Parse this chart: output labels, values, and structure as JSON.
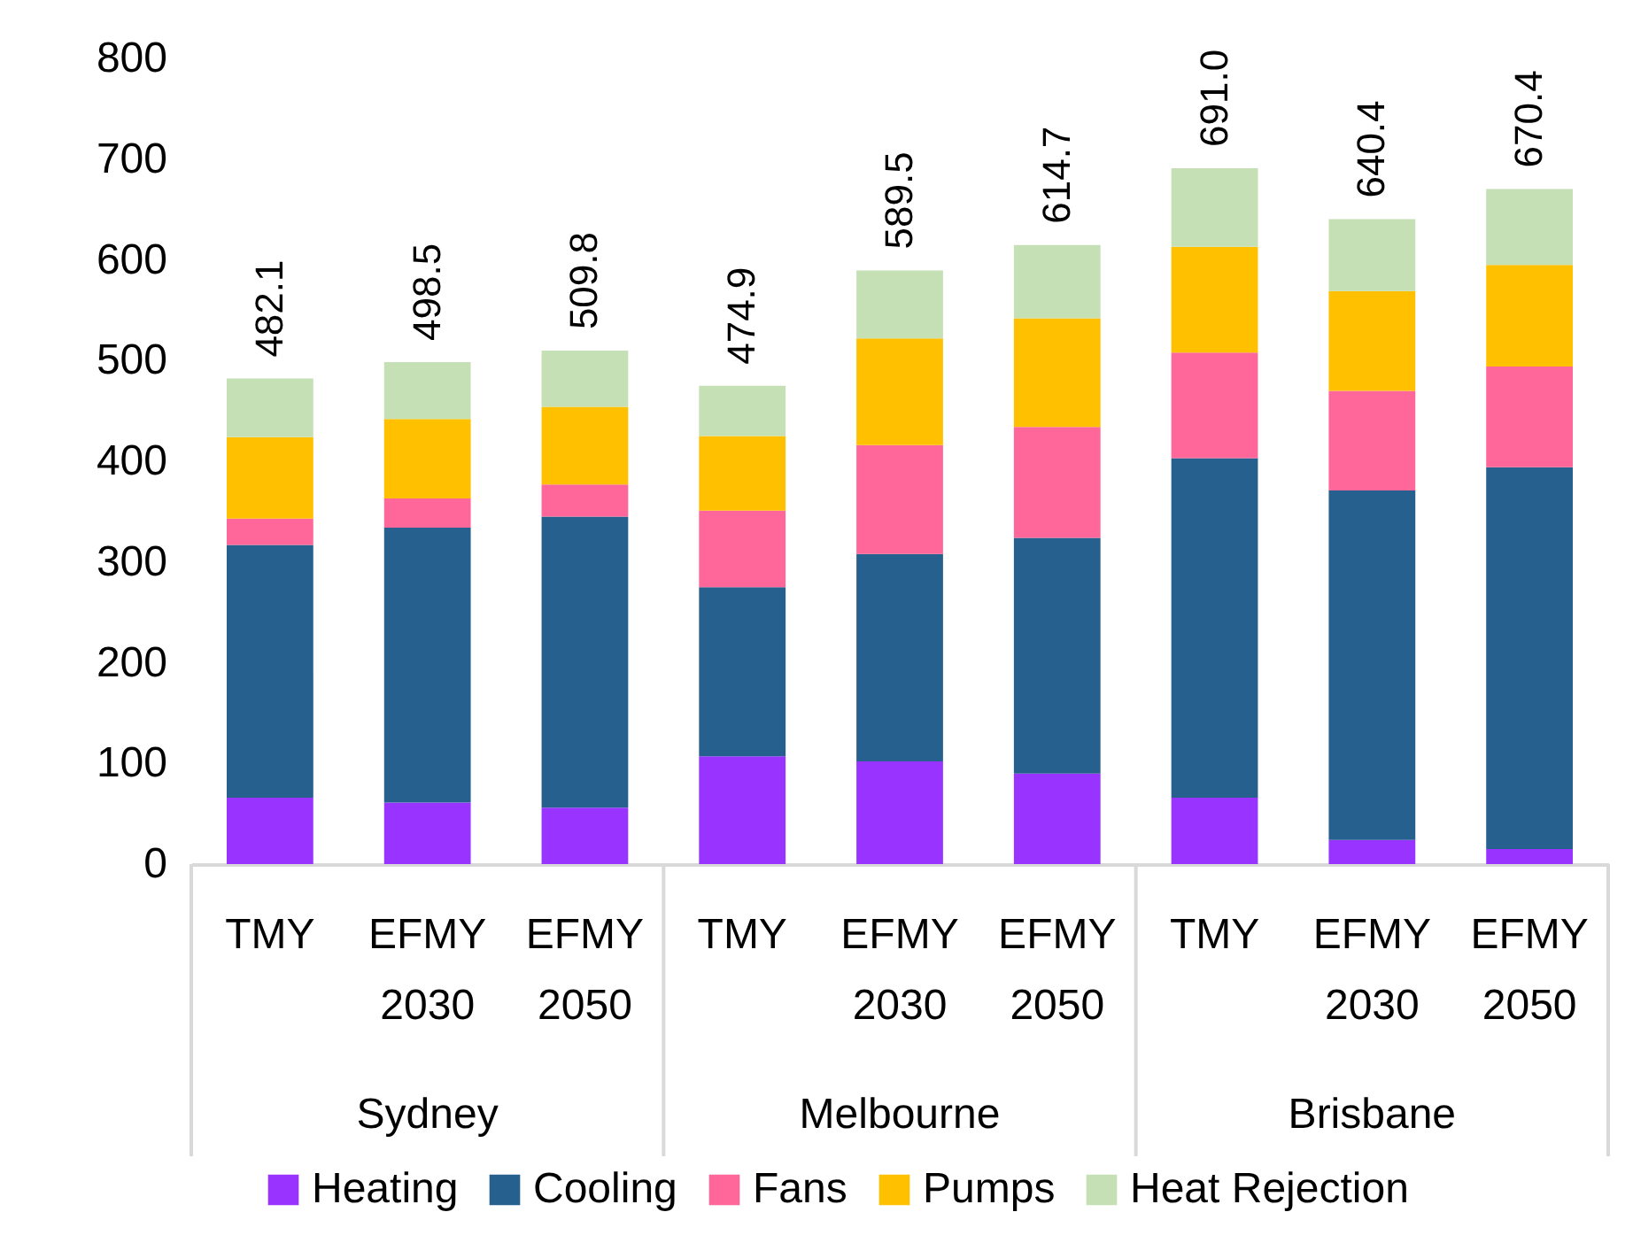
{
  "chart_data": {
    "type": "bar",
    "stacked": true,
    "categories": [
      "TMY",
      "EFMY 2030",
      "EFMY 2050",
      "TMY",
      "EFMY 2030",
      "EFMY 2050",
      "TMY",
      "EFMY 2030",
      "EFMY 2050"
    ],
    "series": [
      {
        "name": "Heating",
        "color": "#9933ff",
        "values": [
          66,
          61,
          56,
          107,
          102,
          90,
          66,
          24,
          15
        ]
      },
      {
        "name": "Cooling",
        "color": "#26608f",
        "values": [
          251,
          273,
          289,
          168,
          206,
          234,
          337,
          347,
          379
        ]
      },
      {
        "name": "Fans",
        "color": "#ff6699",
        "values": [
          26,
          29,
          32,
          76,
          108,
          110,
          105,
          99,
          100
        ]
      },
      {
        "name": "Pumps",
        "color": "#ffc000",
        "values": [
          81,
          79,
          77,
          74,
          106,
          108,
          105,
          99,
          101
        ]
      },
      {
        "name": "Heat Rejection",
        "color": "#c5e0b4",
        "values": [
          58.1,
          56.5,
          55.8,
          49.9,
          67.5,
          72.7,
          78.0,
          71.4,
          75.4
        ]
      }
    ],
    "totals": [
      "482.1",
      "498.5",
      "509.8",
      "474.9",
      "589.5",
      "614.7",
      "691.0",
      "640.4",
      "670.4"
    ],
    "annotations": [
      "Sydney",
      "Melbourne",
      "Brisbane"
    ],
    "ylim": [
      0,
      800
    ],
    "yticks": [
      0,
      100,
      200,
      300,
      400,
      500,
      600,
      700,
      800
    ],
    "grid": false,
    "legend": "bottom"
  }
}
